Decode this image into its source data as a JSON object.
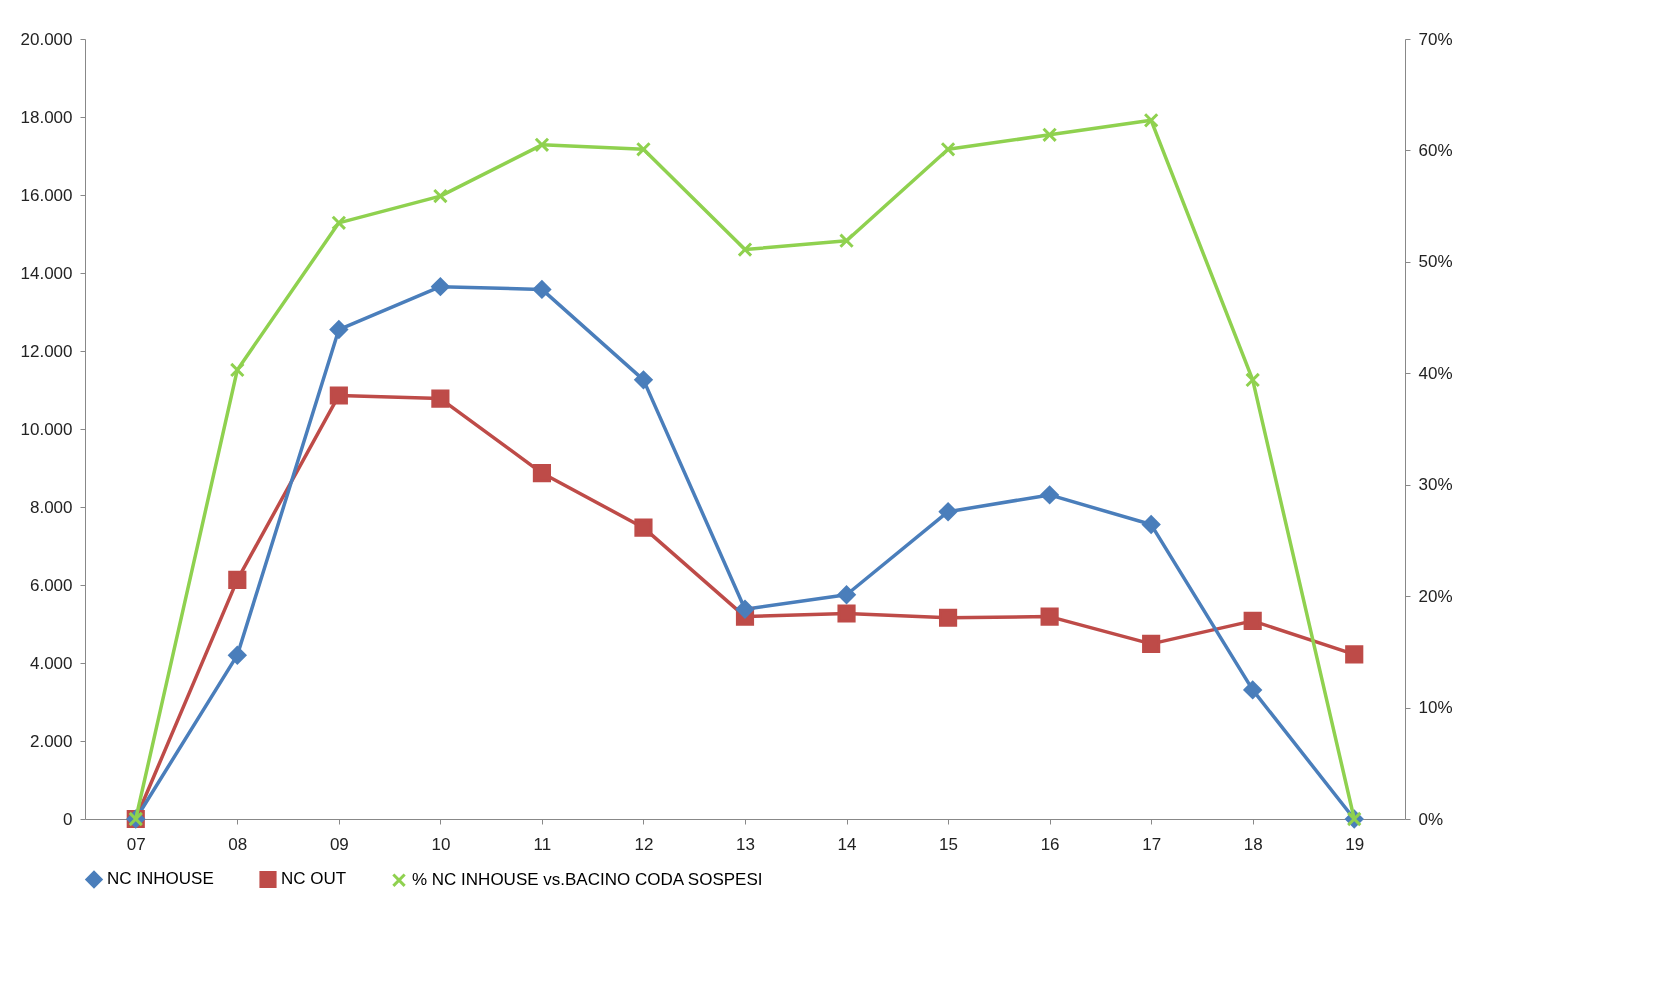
{
  "chart_data": {
    "type": "line",
    "categories": [
      "07",
      "08",
      "09",
      "10",
      "11",
      "12",
      "13",
      "14",
      "15",
      "16",
      "17",
      "18",
      "19"
    ],
    "series": [
      {
        "name": "NC INHOUSE",
        "color": "#4a7ebb",
        "marker": "diamond",
        "values": [
          0,
          4200,
          12550,
          13650,
          13580,
          11260,
          5380,
          5750,
          7880,
          8310,
          7550,
          3310,
          0
        ]
      },
      {
        "name": "NC OUT",
        "color": "#be4b48",
        "marker": "square",
        "values": [
          0,
          6130,
          10860,
          10780,
          8870,
          7470,
          5190,
          5270,
          5160,
          5190,
          4490,
          5080,
          4220
        ]
      },
      {
        "name": "% NC INHOUSE vs.BACINO CODA SOSPESI",
        "color": "#8fd14f",
        "marker": "cross",
        "axis": "y2",
        "values": [
          0,
          40.3,
          53.5,
          55.9,
          60.5,
          60.1,
          51.1,
          51.9,
          60.1,
          61.4,
          62.7,
          39.4,
          0
        ]
      }
    ],
    "ylim": [
      0,
      20000
    ],
    "yticks": [
      {
        "value": 0,
        "label": "0"
      },
      {
        "value": 2000,
        "label": "2.000"
      },
      {
        "value": 4000,
        "label": "4.000"
      },
      {
        "value": 6000,
        "label": "6.000"
      },
      {
        "value": 8000,
        "label": "8.000"
      },
      {
        "value": 10000,
        "label": "10.000"
      },
      {
        "value": 12000,
        "label": "12.000"
      },
      {
        "value": 14000,
        "label": "14.000"
      },
      {
        "value": 16000,
        "label": "16.000"
      },
      {
        "value": 18000,
        "label": "18.000"
      },
      {
        "value": 20000,
        "label": "20.000"
      }
    ],
    "y2lim": [
      0,
      70
    ],
    "y2ticks": [
      {
        "value": 0,
        "label": "0%"
      },
      {
        "value": 10,
        "label": "10%"
      },
      {
        "value": 20,
        "label": "20%"
      },
      {
        "value": 30,
        "label": "30%"
      },
      {
        "value": 40,
        "label": "40%"
      },
      {
        "value": 50,
        "label": "50%"
      },
      {
        "value": 60,
        "label": "60%"
      },
      {
        "value": 70,
        "label": "70%"
      }
    ],
    "grid": false,
    "legend": "bottom",
    "line_style": "solid"
  }
}
